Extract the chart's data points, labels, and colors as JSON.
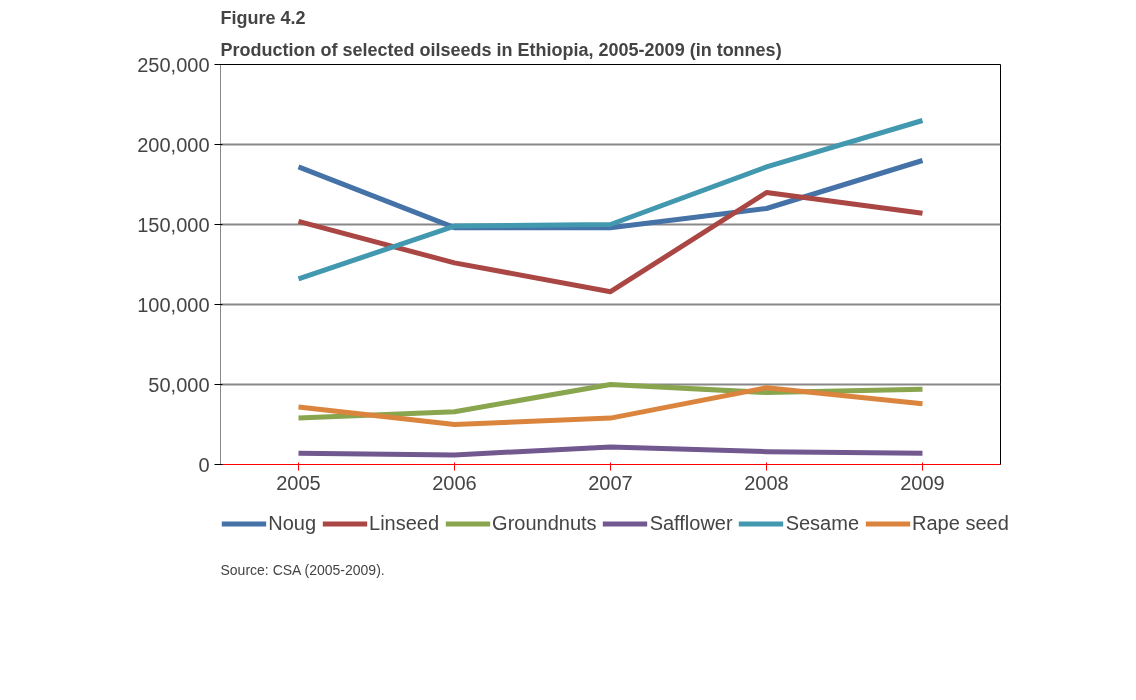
{
  "chart_data": {
    "type": "line",
    "title": "Production of selected oilseeds in Ethiopia, 2005-2009 (in tonnes)",
    "subtitle": "Figure 4.2",
    "categories": [
      "2005",
      "2006",
      "2007",
      "2008",
      "2009"
    ],
    "series": [
      {
        "name": "Noug",
        "color": "#4572a7",
        "values": [
          186000,
          148000,
          148000,
          160000,
          190000
        ]
      },
      {
        "name": "Linseed",
        "color": "#aa4643",
        "values": [
          152000,
          126000,
          108000,
          170000,
          157000
        ]
      },
      {
        "name": "Groundnuts",
        "color": "#89a54e",
        "values": [
          29000,
          33000,
          50000,
          45000,
          47000
        ]
      },
      {
        "name": "Safflower",
        "color": "#71588f",
        "values": [
          7000,
          6000,
          11000,
          8000,
          7000
        ]
      },
      {
        "name": "Sesame",
        "color": "#4198af",
        "values": [
          116000,
          149000,
          150000,
          186000,
          215000
        ]
      },
      {
        "name": "Rape seed",
        "color": "#db843d",
        "values": [
          36000,
          25000,
          29000,
          48000,
          38000
        ]
      }
    ],
    "ylim": [
      0,
      250000
    ],
    "yticks": [
      {
        "value": 0,
        "label": "0"
      },
      {
        "value": 50000,
        "label": "50,000"
      },
      {
        "value": 100000,
        "label": "100,000"
      },
      {
        "value": 150000,
        "label": "150,000"
      },
      {
        "value": 200000,
        "label": "200,000"
      },
      {
        "value": 250000,
        "label": "250,000"
      }
    ],
    "grid": "y",
    "legend": "bottom",
    "marker": "none",
    "line_style": "solid",
    "annotations": [
      "Source: CSA (2005-2009)."
    ]
  }
}
